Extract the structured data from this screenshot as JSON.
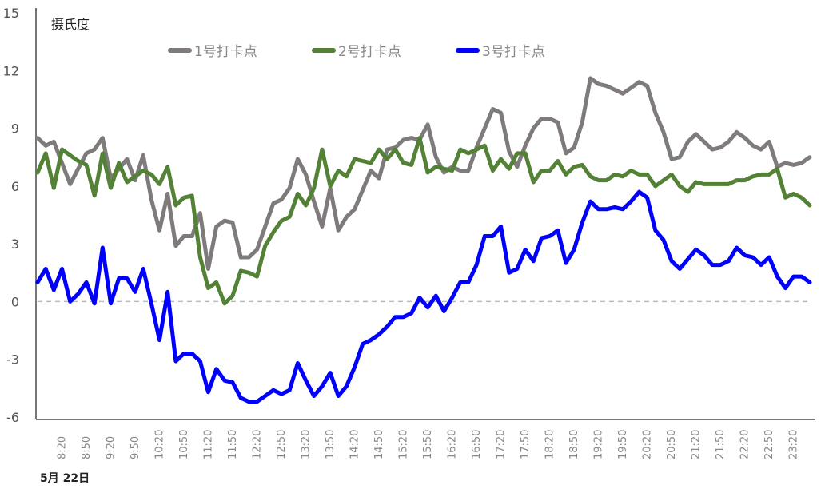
{
  "chart_data": {
    "type": "line",
    "ylabel": "摄氏度",
    "date_label": "5月 22日",
    "ylim": [
      -6,
      15
    ],
    "yticks": [
      15,
      12,
      9,
      6,
      3,
      0,
      -3,
      -6
    ],
    "reference_line": {
      "y": 0,
      "style": "dashed",
      "color": "#bbbbbb"
    },
    "legend_position": "top",
    "grid": false,
    "x_tick_labels": [
      "8:20",
      "8:50",
      "9:20",
      "9:50",
      "10:20",
      "10:50",
      "11:20",
      "11:50",
      "12:20",
      "12:50",
      "13:20",
      "13:50",
      "14:20",
      "14:50",
      "15:20",
      "15:50",
      "16:20",
      "16:50",
      "17:20",
      "17:50",
      "18:20",
      "18:50",
      "19:20",
      "19:50",
      "20:20",
      "20:50",
      "21:20",
      "21:50",
      "22:20",
      "22:50",
      "23:20"
    ],
    "x": [
      "7:50",
      "8:00",
      "8:10",
      "8:20",
      "8:30",
      "8:40",
      "8:50",
      "9:00",
      "9:10",
      "9:20",
      "9:30",
      "9:40",
      "9:50",
      "10:00",
      "10:10",
      "10:20",
      "10:30",
      "10:40",
      "10:50",
      "11:00",
      "11:10",
      "11:20",
      "11:30",
      "11:40",
      "11:50",
      "12:00",
      "12:10",
      "12:20",
      "12:30",
      "12:40",
      "12:50",
      "13:00",
      "13:10",
      "13:20",
      "13:30",
      "13:40",
      "13:50",
      "14:00",
      "14:10",
      "14:20",
      "14:30",
      "14:40",
      "14:50",
      "15:00",
      "15:10",
      "15:20",
      "15:30",
      "15:40",
      "15:50",
      "16:00",
      "16:10",
      "16:20",
      "16:30",
      "16:40",
      "16:50",
      "17:00",
      "17:10",
      "17:20",
      "17:30",
      "17:40",
      "17:50",
      "18:00",
      "18:10",
      "18:20",
      "18:30",
      "18:40",
      "18:50",
      "19:00",
      "19:10",
      "19:20",
      "19:30",
      "19:40",
      "19:50",
      "20:00",
      "20:10",
      "20:20",
      "20:30",
      "20:40",
      "20:50",
      "21:00",
      "21:10",
      "21:20",
      "21:30",
      "21:40",
      "21:50",
      "22:00",
      "22:10",
      "22:20",
      "22:30",
      "22:40",
      "22:50",
      "23:00",
      "23:10",
      "23:20",
      "23:30",
      "23:40"
    ],
    "series": [
      {
        "name": "1号打卡点",
        "color": "#7f7b7b",
        "values": [
          8.5,
          8.1,
          8.3,
          7.2,
          6.1,
          6.9,
          7.7,
          7.9,
          8.5,
          6.4,
          6.9,
          7.4,
          6.3,
          7.6,
          5.3,
          3.7,
          5.6,
          2.9,
          3.4,
          3.4,
          4.6,
          1.7,
          3.9,
          4.2,
          4.1,
          2.3,
          2.3,
          2.7,
          3.9,
          5.1,
          5.3,
          5.9,
          7.4,
          6.6,
          5.2,
          3.9,
          5.9,
          3.7,
          4.4,
          4.8,
          5.8,
          6.8,
          6.4,
          7.9,
          8.0,
          8.4,
          8.5,
          8.4,
          9.2,
          7.5,
          6.7,
          7.0,
          6.8,
          6.8,
          8.0,
          9.0,
          10.0,
          9.8,
          7.8,
          7.0,
          8.1,
          9.0,
          9.5,
          9.5,
          9.3,
          7.7,
          8.0,
          9.3,
          11.6,
          11.3,
          11.2,
          11.0,
          10.8,
          11.1,
          11.4,
          11.2,
          9.8,
          8.8,
          7.4,
          7.5,
          8.3,
          8.7,
          8.3,
          7.9,
          8.0,
          8.3,
          8.8,
          8.5,
          8.1,
          7.9,
          8.3,
          7.0,
          7.2,
          7.1,
          7.2,
          7.5
        ]
      },
      {
        "name": "2号打卡点",
        "color": "#538135",
        "values": [
          6.7,
          7.7,
          5.9,
          7.9,
          7.6,
          7.3,
          7.1,
          5.5,
          7.7,
          5.9,
          7.2,
          6.2,
          6.5,
          6.8,
          6.6,
          6.1,
          7.0,
          5.0,
          5.4,
          5.5,
          2.3,
          0.7,
          1.0,
          -0.1,
          0.3,
          1.6,
          1.5,
          1.3,
          2.9,
          3.6,
          4.2,
          4.4,
          5.6,
          5.0,
          5.9,
          7.9,
          6.0,
          6.8,
          6.5,
          7.4,
          7.3,
          7.2,
          7.9,
          7.4,
          7.9,
          7.2,
          7.1,
          8.5,
          6.7,
          7.0,
          6.9,
          6.8,
          7.9,
          7.7,
          7.9,
          8.1,
          6.8,
          7.4,
          6.9,
          7.7,
          7.7,
          6.2,
          6.8,
          6.8,
          7.3,
          6.6,
          7.0,
          7.1,
          6.5,
          6.3,
          6.3,
          6.6,
          6.5,
          6.8,
          6.6,
          6.6,
          6.0,
          6.3,
          6.6,
          6.0,
          5.7,
          6.2,
          6.1,
          6.1,
          6.1,
          6.1,
          6.3,
          6.3,
          6.5,
          6.6,
          6.6,
          6.9,
          5.4,
          5.6,
          5.4,
          5.0
        ]
      },
      {
        "name": "3号打卡点",
        "color": "#0000ff",
        "values": [
          1.0,
          1.7,
          0.6,
          1.7,
          0.0,
          0.4,
          1.0,
          -0.1,
          2.8,
          -0.1,
          1.2,
          1.2,
          0.5,
          1.7,
          -0.1,
          -2.0,
          0.5,
          -3.1,
          -2.7,
          -2.7,
          -3.1,
          -4.7,
          -3.5,
          -4.1,
          -4.2,
          -5.0,
          -5.2,
          -5.2,
          -4.9,
          -4.6,
          -4.8,
          -4.6,
          -3.2,
          -4.1,
          -4.9,
          -4.4,
          -3.7,
          -4.9,
          -4.4,
          -3.4,
          -2.2,
          -2.0,
          -1.7,
          -1.3,
          -0.8,
          -0.8,
          -0.6,
          0.2,
          -0.3,
          0.3,
          -0.5,
          0.2,
          1.0,
          1.0,
          1.9,
          3.4,
          3.4,
          3.9,
          1.5,
          1.7,
          2.7,
          2.1,
          3.3,
          3.4,
          3.7,
          2.0,
          2.7,
          4.1,
          5.2,
          4.8,
          4.8,
          4.9,
          4.8,
          5.2,
          5.7,
          5.4,
          3.7,
          3.2,
          2.1,
          1.7,
          2.2,
          2.7,
          2.4,
          1.9,
          1.9,
          2.1,
          2.8,
          2.4,
          2.3,
          1.9,
          2.3,
          1.3,
          0.7,
          1.3,
          1.3,
          1.0
        ]
      }
    ]
  }
}
